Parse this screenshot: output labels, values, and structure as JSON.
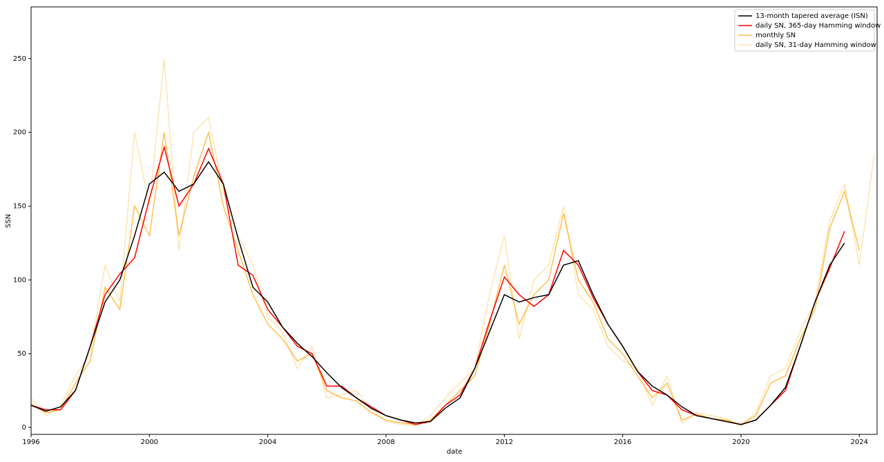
{
  "chart_data": {
    "type": "line",
    "x_label": "date",
    "y_label": "SSN",
    "x": [
      1996,
      1996.5,
      1997,
      1997.5,
      1998,
      1998.5,
      1999,
      1999.5,
      2000,
      2000.5,
      2001,
      2001.5,
      2002,
      2002.5,
      2003,
      2003.5,
      2004,
      2004.5,
      2005,
      2005.5,
      2006,
      2006.5,
      2007,
      2007.5,
      2008,
      2008.5,
      2009,
      2009.5,
      2010,
      2010.5,
      2011,
      2011.5,
      2012,
      2012.5,
      2013,
      2013.5,
      2014,
      2014.5,
      2015,
      2015.5,
      2016,
      2016.5,
      2017,
      2017.5,
      2018,
      2018.5,
      2019,
      2019.5,
      2020,
      2020.5,
      2021,
      2021.5,
      2022,
      2022.5,
      2023,
      2023.5,
      2024,
      2024.5
    ],
    "series": [
      {
        "name": "13-month tapered average (ISN)",
        "color": "#000000",
        "opacity": 1,
        "values": [
          15,
          11,
          14,
          25,
          55,
          85,
          100,
          130,
          165,
          173,
          160,
          165,
          180,
          165,
          128,
          95,
          85,
          68,
          57,
          48,
          37,
          27,
          20,
          13,
          8,
          5,
          3,
          4,
          13,
          20,
          40,
          65,
          90,
          85,
          88,
          90,
          110,
          113,
          90,
          70,
          55,
          38,
          28,
          22,
          14,
          8,
          6,
          4,
          2,
          5,
          15,
          27,
          55,
          85,
          110,
          125,
          null,
          null
        ]
      },
      {
        "name": "daily SN, 365-day Hamming window",
        "color": "#ff0000",
        "opacity": 1,
        "values": [
          15,
          12,
          12,
          25,
          55,
          90,
          104,
          115,
          155,
          190,
          150,
          165,
          189,
          165,
          110,
          103,
          80,
          68,
          55,
          50,
          28,
          28,
          20,
          14,
          8,
          5,
          2,
          4,
          15,
          22,
          40,
          72,
          102,
          90,
          82,
          90,
          120,
          110,
          88,
          70,
          55,
          38,
          25,
          22,
          12,
          8,
          6,
          4,
          2,
          5,
          15,
          25,
          55,
          85,
          108,
          133,
          null,
          null
        ]
      },
      {
        "name": "monthly SN",
        "color": "#ffa500",
        "opacity": 0.7,
        "values": [
          16,
          10,
          12,
          30,
          45,
          95,
          80,
          150,
          130,
          200,
          130,
          170,
          200,
          150,
          120,
          90,
          70,
          60,
          45,
          50,
          25,
          20,
          18,
          10,
          5,
          3,
          2,
          5,
          15,
          25,
          35,
          70,
          110,
          70,
          90,
          100,
          145,
          100,
          85,
          60,
          50,
          35,
          20,
          30,
          5,
          9,
          6,
          5,
          2,
          8,
          30,
          35,
          60,
          80,
          135,
          160,
          120,
          null
        ]
      },
      {
        "name": "daily SN, 31-day Hamming window",
        "color": "#ffa500",
        "opacity": 0.3,
        "values": [
          20,
          8,
          15,
          35,
          50,
          110,
          85,
          200,
          150,
          250,
          120,
          200,
          210,
          160,
          130,
          110,
          75,
          65,
          40,
          55,
          20,
          22,
          25,
          12,
          4,
          2,
          1,
          8,
          20,
          30,
          40,
          90,
          130,
          60,
          100,
          110,
          150,
          90,
          80,
          55,
          45,
          40,
          15,
          35,
          3,
          10,
          8,
          6,
          1,
          10,
          35,
          40,
          65,
          85,
          140,
          165,
          110,
          185
        ]
      }
    ],
    "xlim": [
      1996,
      2024.6
    ],
    "xticks": [
      1996,
      2000,
      2004,
      2008,
      2012,
      2016,
      2020,
      2024
    ],
    "ylim": [
      -4.7,
      285
    ],
    "yticks": [
      0,
      50,
      100,
      150,
      200,
      250
    ],
    "legend": "upper-right"
  }
}
